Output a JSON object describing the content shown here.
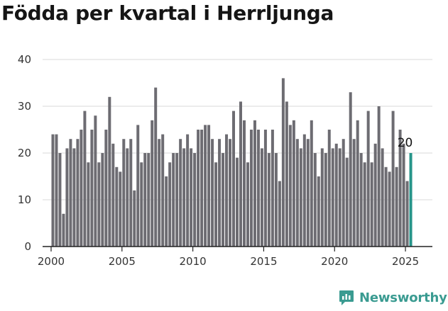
{
  "title": "Födda per kvartal i Herrljunga",
  "brand": {
    "name": "Newsworthy",
    "icon": "newsworthy-logo-icon",
    "color": "#3a9b91"
  },
  "chart_data": {
    "type": "bar",
    "title": "Födda per kvartal i Herrljunga",
    "xlabel": "",
    "ylabel": "",
    "ylim": [
      0,
      40
    ],
    "yticks": [
      "0",
      "10",
      "20",
      "30",
      "40"
    ],
    "xticks": [
      "2000",
      "2005",
      "2010",
      "2015",
      "2020",
      "2025"
    ],
    "xlim": [
      1999.4,
      2026.9
    ],
    "grid": true,
    "bar_color": "#6d6c72",
    "highlight_color": "#26958a",
    "series": [
      {
        "start_year": 2000,
        "values": [
          24,
          24,
          20,
          7,
          21,
          23,
          21,
          23,
          25,
          29,
          18,
          25,
          28,
          18,
          20,
          25,
          32,
          22,
          17,
          16,
          23,
          21,
          23,
          12,
          26,
          18,
          20,
          20,
          27,
          34,
          23,
          24,
          15,
          18,
          20,
          20,
          23,
          21,
          24,
          21,
          20,
          25,
          25,
          26,
          26,
          23,
          18,
          23,
          20,
          24,
          23,
          29,
          19,
          31,
          27,
          18,
          25,
          27,
          25,
          21,
          25,
          20,
          25,
          20,
          14,
          36,
          31,
          26,
          27,
          23,
          21,
          24,
          23,
          27,
          20,
          15,
          21,
          20,
          25,
          21,
          22,
          21,
          23,
          19,
          33,
          23,
          27,
          20,
          18,
          29,
          18,
          22,
          30,
          21,
          17,
          16,
          29,
          17,
          25,
          22,
          14,
          20
        ]
      }
    ],
    "highlight": {
      "index": 101,
      "value": 20,
      "label": "20"
    }
  }
}
